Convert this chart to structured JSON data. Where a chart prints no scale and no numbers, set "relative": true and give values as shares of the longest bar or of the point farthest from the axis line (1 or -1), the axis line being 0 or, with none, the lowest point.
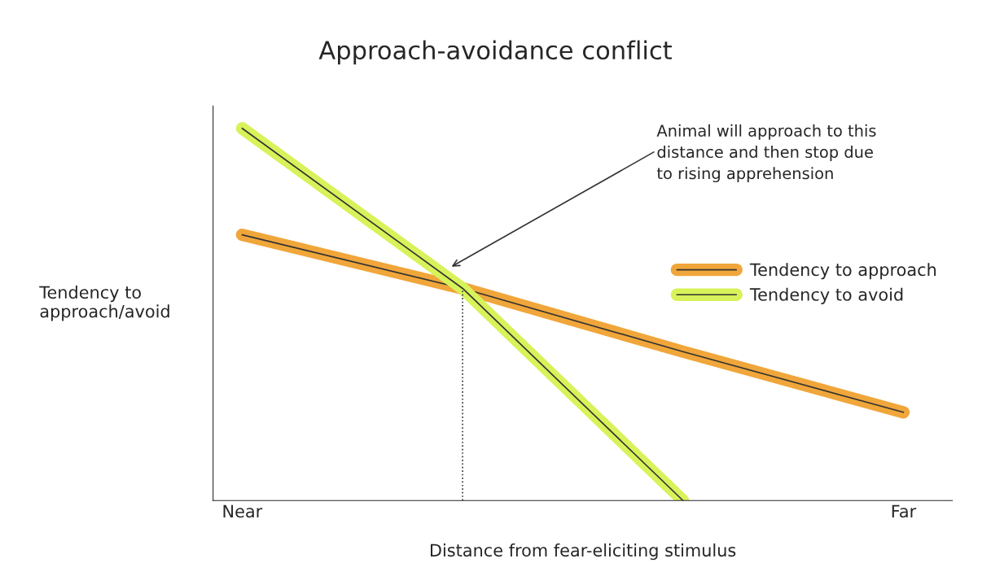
{
  "chart_data": {
    "type": "line",
    "title": "Approach-avoidance conflict",
    "xlabel": "Distance from fear-eliciting stimulus",
    "ylabel": "Tendency to\napproach/avoid",
    "relative": true,
    "categories": [
      "Near",
      null,
      null,
      "Far"
    ],
    "tick_labels": "x",
    "legend": "center right",
    "series": [
      {
        "name": "Tendency to approach",
        "color": "#f0a63a",
        "values": [
          0.714,
          0.57,
          0.4,
          0.237
        ]
      },
      {
        "name": "Tendency to avoid",
        "color": "#d8f25a",
        "values": [
          1,
          0.57,
          0,
          null
        ]
      }
    ],
    "annotations": [
      "Animal will approach to this\ndistance and then stop due\nto rising apprehension"
    ]
  }
}
